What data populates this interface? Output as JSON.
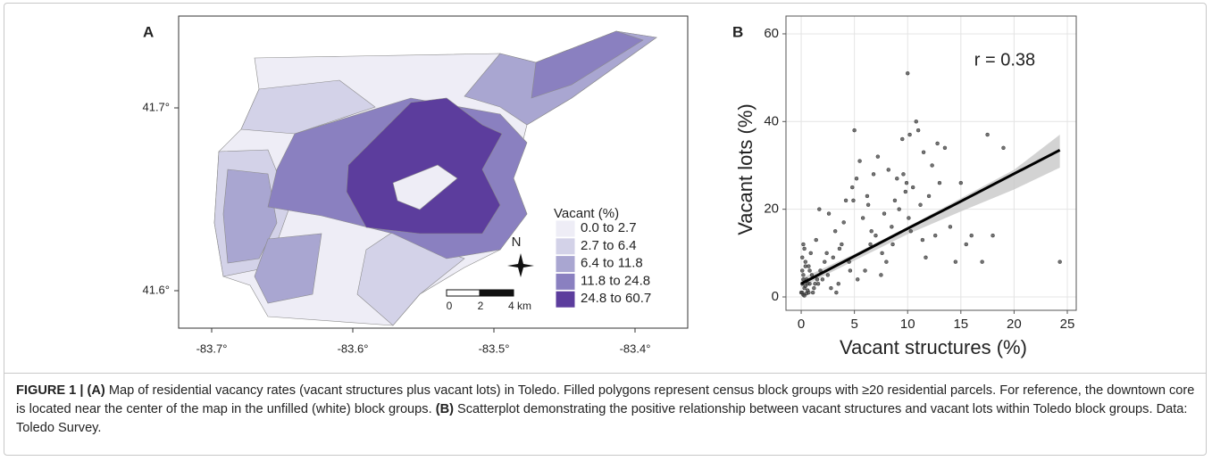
{
  "panel_a": {
    "label": "A",
    "xticks": [
      "-83.7°",
      "-83.6°",
      "-83.5°",
      "-83.4°"
    ],
    "yticks": [
      "41.7°",
      "41.6°"
    ],
    "legend": {
      "title": "Vacant (%)",
      "items": [
        {
          "label": "0.0 to 2.7",
          "color": "#eeedf6"
        },
        {
          "label": "2.7 to 6.4",
          "color": "#d3d2e8"
        },
        {
          "label": "6.4 to 11.8",
          "color": "#a9a6d1"
        },
        {
          "label": "11.8 to 24.8",
          "color": "#8a80c0"
        },
        {
          "label": "24.8 to 60.7",
          "color": "#5c3d9d"
        }
      ]
    },
    "north": "N",
    "scale_labels": [
      "0",
      "2",
      "4 km"
    ]
  },
  "chart_data": {
    "type": "scatter",
    "label": "B",
    "annotation": "r = 0.38",
    "x_label": "Vacant structures (%)",
    "y_label": "Vacant lots (%)",
    "color": "#444444",
    "x": [
      0,
      0.1,
      0.2,
      0.3,
      0.1,
      0.5,
      0.4,
      0.6,
      0.8,
      1,
      0.2,
      0.3,
      0.7,
      1.2,
      1.5,
      0.9,
      0.4,
      0.1,
      0.2,
      0.6,
      1.1,
      1.8,
      2,
      2.2,
      1.4,
      0.3,
      0.5,
      2.5,
      2.8,
      3,
      3.2,
      1.7,
      0.8,
      0.2,
      0.1,
      0.4,
      3.5,
      3.8,
      4,
      4.2,
      4.5,
      4.8,
      5,
      5.2,
      5.5,
      2.4,
      3.3,
      1.6,
      5.8,
      6,
      6.2,
      6.5,
      6.8,
      7,
      7.2,
      7.5,
      7.8,
      8,
      8.2,
      8.5,
      8.8,
      9,
      9.2,
      9.5,
      9.8,
      10,
      10.2,
      10.5,
      10.8,
      11,
      11.2,
      11.5,
      12,
      12.3,
      12.6,
      13,
      13.5,
      14,
      14.5,
      15,
      15.5,
      16,
      17,
      17.5,
      18,
      19,
      24.3,
      4.6,
      6.3,
      7.6,
      8.6,
      9.6,
      10.3,
      11.7,
      3.6,
      2.6,
      1.3,
      0.7,
      5.3,
      6.6,
      9.9,
      10.1,
      11.4,
      12.8,
      4.9
    ],
    "values": [
      1,
      3,
      0.5,
      2,
      6,
      4,
      8,
      1.5,
      3,
      5,
      12,
      0.3,
      7,
      2,
      4,
      10,
      2.5,
      9,
      5,
      3,
      1,
      6,
      4,
      8,
      13,
      11,
      0.8,
      5,
      2,
      9,
      15,
      20,
      6,
      4,
      1,
      7,
      3,
      12,
      17,
      22,
      8,
      25,
      38,
      27,
      31,
      10,
      1,
      3,
      18,
      6,
      23,
      12,
      28,
      14,
      32,
      5,
      19,
      8,
      29,
      16,
      22,
      27,
      20,
      36,
      24,
      51,
      37,
      25,
      40,
      38,
      21,
      33,
      23,
      30,
      14,
      26,
      34,
      16,
      8,
      26,
      12,
      14,
      8,
      37,
      14,
      34,
      8,
      6,
      21,
      10,
      12,
      28,
      15,
      9,
      11,
      19,
      3,
      1,
      4,
      15,
      26,
      18,
      13,
      35,
      22
    ],
    "trend": {
      "x": [
        0,
        5,
        10,
        15,
        20,
        24.3
      ],
      "values": [
        3,
        9.3,
        15.6,
        21.8,
        28.1,
        33.5
      ],
      "lower": [
        2.2,
        8.3,
        14.3,
        19.5,
        24.5,
        29.5
      ],
      "upper": [
        4.2,
        9.8,
        16,
        22.5,
        29,
        37
      ]
    },
    "xlim": [
      -1.43,
      25.84
    ],
    "ylim": [
      -3.05,
      64.06
    ],
    "xticks": [
      0,
      5,
      10,
      15,
      20,
      25
    ],
    "yticks": [
      0,
      20,
      40,
      60
    ],
    "grid": true
  },
  "caption": [
    {
      "text": "FIGURE 1 | (A)",
      "bold": true
    },
    {
      "text": " Map of residential vacancy rates (vacant structures plus vacant lots) in Toledo. Filled polygons represent census block groups with ≥20 residential parcels. For reference, the downtown core is located near the center of the map in the unfilled (white) block groups. ",
      "bold": false
    },
    {
      "text": "(B)",
      "bold": true
    },
    {
      "text": " Scatterplot demonstrating the positive relationship between vacant structures and vacant lots within Toledo block groups. Data: Toledo Survey.",
      "bold": false
    }
  ]
}
